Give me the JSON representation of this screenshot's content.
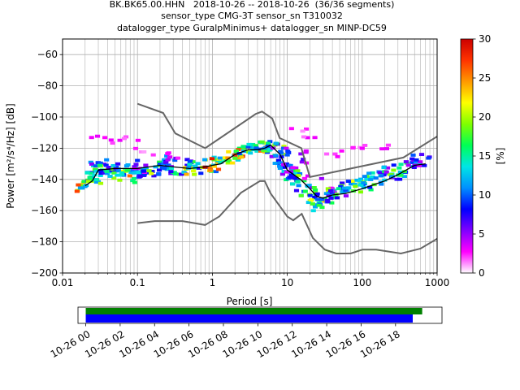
{
  "title_lines": [
    "BK.BK65.00.HHN   2018-10-26 -- 2018-10-26  (36/36 segments)",
    "sensor_type CMG-3T sensor_sn T310032",
    "datalogger_type GuralpMinimus+ datalogger_sn MINP-DC59"
  ],
  "chart_data": [
    {
      "type": "heatmap",
      "xlabel": "Period [s]",
      "ylabel": "Power [m²/s⁴/Hz] [dB]",
      "xscale": "log",
      "xlim": [
        0.01,
        1000
      ],
      "ylim": [
        -200,
        -50
      ],
      "x_ticks": [
        0.01,
        0.1,
        1,
        10,
        100,
        1000
      ],
      "x_tick_labels": [
        "0.01",
        "0.1",
        "1",
        "10",
        "100",
        "1000"
      ],
      "y_ticks": [
        -200,
        -180,
        -160,
        -140,
        -120,
        -100,
        -80,
        -60
      ],
      "y_tick_labels": [
        "−200",
        "−180",
        "−160",
        "−140",
        "−120",
        "−100",
        "−80",
        "−60"
      ],
      "grid": true,
      "colorbar": {
        "label": "[%]",
        "range": [
          0,
          30
        ],
        "ticks": [
          0,
          5,
          10,
          15,
          20,
          25,
          30
        ],
        "tick_labels": [
          "0",
          "5",
          "10",
          "15",
          "20",
          "25",
          "30"
        ],
        "colormap": [
          "#ffffff",
          "#ff00ff",
          "#8000ff",
          "#0000ff",
          "#0090ff",
          "#00e5e5",
          "#00ff55",
          "#80ff00",
          "#ffff00",
          "#ff9900",
          "#ff3300",
          "#cc0000"
        ]
      },
      "nhnm": {
        "name": "NHNM",
        "color": "#666666",
        "x": [
          0.1,
          0.22,
          0.32,
          0.8,
          3.8,
          4.6,
          6.3,
          7.9,
          15.4,
          20,
          354.8,
          1000
        ],
        "y": [
          -91.5,
          -97.4,
          -110.5,
          -120,
          -98,
          -96.5,
          -101,
          -113.5,
          -120,
          -138.5,
          -126,
          -112.5
        ]
      },
      "nlnm": {
        "name": "NLNM",
        "color": "#666666",
        "x": [
          0.1,
          0.17,
          0.4,
          0.8,
          1.24,
          2.4,
          4.3,
          5,
          6,
          10,
          12,
          15.6,
          21.9,
          31.6,
          45,
          70,
          101,
          154,
          328,
          600,
          1000
        ],
        "y": [
          -168,
          -166.7,
          -166.7,
          -169.2,
          -163.7,
          -148.6,
          -141.1,
          -141.1,
          -149,
          -163.8,
          -166.2,
          -162.1,
          -177.5,
          -185,
          -187.5,
          -187.5,
          -185,
          -185,
          -187.5,
          -184.4,
          -178
        ]
      },
      "mode": {
        "color": "#000000",
        "x": [
          0.02,
          0.025,
          0.03,
          0.05,
          0.1,
          0.2,
          0.3,
          0.5,
          0.8,
          1.0,
          1.3,
          2,
          3,
          4,
          5,
          6,
          8,
          10,
          15,
          20,
          25,
          30,
          40,
          60,
          100,
          150,
          200,
          300,
          500,
          700
        ],
        "y": [
          -144,
          -141,
          -134,
          -133,
          -133,
          -131,
          -132,
          -133,
          -132,
          -131,
          -130,
          -124,
          -121,
          -121,
          -120,
          -118,
          -124,
          -134,
          -140,
          -146,
          -151,
          -152,
          -150,
          -149,
          -146,
          -143,
          -141,
          -137,
          -131,
          -130
        ]
      },
      "density": [
        {
          "x": 0.02,
          "y": -144,
          "pct": 25
        },
        {
          "x": 0.023,
          "y": -142,
          "pct": 22
        },
        {
          "x": 0.025,
          "y": -139,
          "pct": 20
        },
        {
          "x": 0.028,
          "y": -137,
          "pct": 18
        },
        {
          "x": 0.03,
          "y": -133,
          "pct": 15
        },
        {
          "x": 0.035,
          "y": -135,
          "pct": 20
        },
        {
          "x": 0.04,
          "y": -131,
          "pct": 10
        },
        {
          "x": 0.05,
          "y": -136,
          "pct": 22
        },
        {
          "x": 0.06,
          "y": -134,
          "pct": 18
        },
        {
          "x": 0.07,
          "y": -137,
          "pct": 24
        },
        {
          "x": 0.09,
          "y": -135,
          "pct": 16
        },
        {
          "x": 0.1,
          "y": -138,
          "pct": 17
        },
        {
          "x": 0.12,
          "y": -132,
          "pct": 9
        },
        {
          "x": 0.15,
          "y": -136,
          "pct": 20
        },
        {
          "x": 0.2,
          "y": -131,
          "pct": 18
        },
        {
          "x": 0.25,
          "y": -134,
          "pct": 15
        },
        {
          "x": 0.3,
          "y": -129,
          "pct": 12
        },
        {
          "x": 0.35,
          "y": -135,
          "pct": 20
        },
        {
          "x": 0.4,
          "y": -127,
          "pct": 8
        },
        {
          "x": 0.5,
          "y": -134,
          "pct": 22
        },
        {
          "x": 0.6,
          "y": -132,
          "pct": 20
        },
        {
          "x": 0.8,
          "y": -131,
          "pct": 26
        },
        {
          "x": 1.0,
          "y": -131,
          "pct": 28
        },
        {
          "x": 1.3,
          "y": -129,
          "pct": 27
        },
        {
          "x": 1.6,
          "y": -127,
          "pct": 26
        },
        {
          "x": 2.0,
          "y": -124,
          "pct": 27
        },
        {
          "x": 2.5,
          "y": -122,
          "pct": 26
        },
        {
          "x": 3.0,
          "y": -121,
          "pct": 25
        },
        {
          "x": 4.0,
          "y": -120,
          "pct": 25
        },
        {
          "x": 5.0,
          "y": -119,
          "pct": 22
        },
        {
          "x": 6.0,
          "y": -118,
          "pct": 18
        },
        {
          "x": 7.0,
          "y": -121,
          "pct": 20
        },
        {
          "x": 8.0,
          "y": -124,
          "pct": 10
        },
        {
          "x": 9.0,
          "y": -129,
          "pct": 12
        },
        {
          "x": 10.0,
          "y": -133,
          "pct": 11
        },
        {
          "x": 11.0,
          "y": -137,
          "pct": 18
        },
        {
          "x": 12.0,
          "y": -134,
          "pct": 7
        },
        {
          "x": 14.0,
          "y": -140,
          "pct": 19
        },
        {
          "x": 15.0,
          "y": -128,
          "pct": 6
        },
        {
          "x": 17.0,
          "y": -144,
          "pct": 16
        },
        {
          "x": 18.0,
          "y": -123,
          "pct": 5
        },
        {
          "x": 20.0,
          "y": -148,
          "pct": 20
        },
        {
          "x": 22.0,
          "y": -139,
          "pct": 6
        },
        {
          "x": 25.0,
          "y": -152,
          "pct": 22
        },
        {
          "x": 27.0,
          "y": -157,
          "pct": 20
        },
        {
          "x": 30.0,
          "y": -153,
          "pct": 16
        },
        {
          "x": 33.0,
          "y": -147,
          "pct": 8
        },
        {
          "x": 40.0,
          "y": -150,
          "pct": 20
        },
        {
          "x": 50.0,
          "y": -148,
          "pct": 12
        },
        {
          "x": 60.0,
          "y": -146,
          "pct": 18
        },
        {
          "x": 80.0,
          "y": -144,
          "pct": 20
        },
        {
          "x": 100.0,
          "y": -143,
          "pct": 22
        },
        {
          "x": 130.0,
          "y": -141,
          "pct": 18
        },
        {
          "x": 160.0,
          "y": -139,
          "pct": 14
        },
        {
          "x": 200.0,
          "y": -138,
          "pct": 20
        },
        {
          "x": 250.0,
          "y": -136,
          "pct": 12
        },
        {
          "x": 300.0,
          "y": -135,
          "pct": 18
        },
        {
          "x": 400.0,
          "y": -133,
          "pct": 16
        },
        {
          "x": 500.0,
          "y": -130,
          "pct": 12
        },
        {
          "x": 600.0,
          "y": -128,
          "pct": 10
        },
        {
          "x": 0.03,
          "y": -112,
          "pct": 3
        },
        {
          "x": 0.05,
          "y": -116,
          "pct": 3
        },
        {
          "x": 0.08,
          "y": -114,
          "pct": 3
        },
        {
          "x": 0.12,
          "y": -121,
          "pct": 3
        },
        {
          "x": 0.2,
          "y": -123,
          "pct": 3
        },
        {
          "x": 0.3,
          "y": -127,
          "pct": 4
        },
        {
          "x": 15.0,
          "y": -108,
          "pct": 3
        },
        {
          "x": 20.0,
          "y": -114,
          "pct": 3
        },
        {
          "x": 40.0,
          "y": -125,
          "pct": 3
        },
        {
          "x": 60.0,
          "y": -121,
          "pct": 3
        },
        {
          "x": 100.0,
          "y": -119,
          "pct": 3
        },
        {
          "x": 200.0,
          "y": -119,
          "pct": 3
        }
      ]
    },
    {
      "type": "bar",
      "orientation": "horizontal",
      "tick_labels": [
        "10-26 00",
        "10-26 02",
        "10-26 04",
        "10-26 06",
        "10-26 08",
        "10-26 10",
        "10-26 12",
        "10-26 14",
        "10-26 16",
        "10-26 18"
      ],
      "x_hours": [
        0,
        2,
        4,
        6,
        8,
        10,
        12,
        14,
        16,
        18
      ],
      "xlim_hours": [
        -0.45,
        20.7
      ],
      "coverage": [
        {
          "name": "data",
          "color": "#008000",
          "start_hour": 0.0,
          "end_hour": 19.55
        },
        {
          "name": "segments",
          "color": "#0000ff",
          "start_hour": 0.0,
          "end_hour": 19.0
        }
      ]
    }
  ]
}
